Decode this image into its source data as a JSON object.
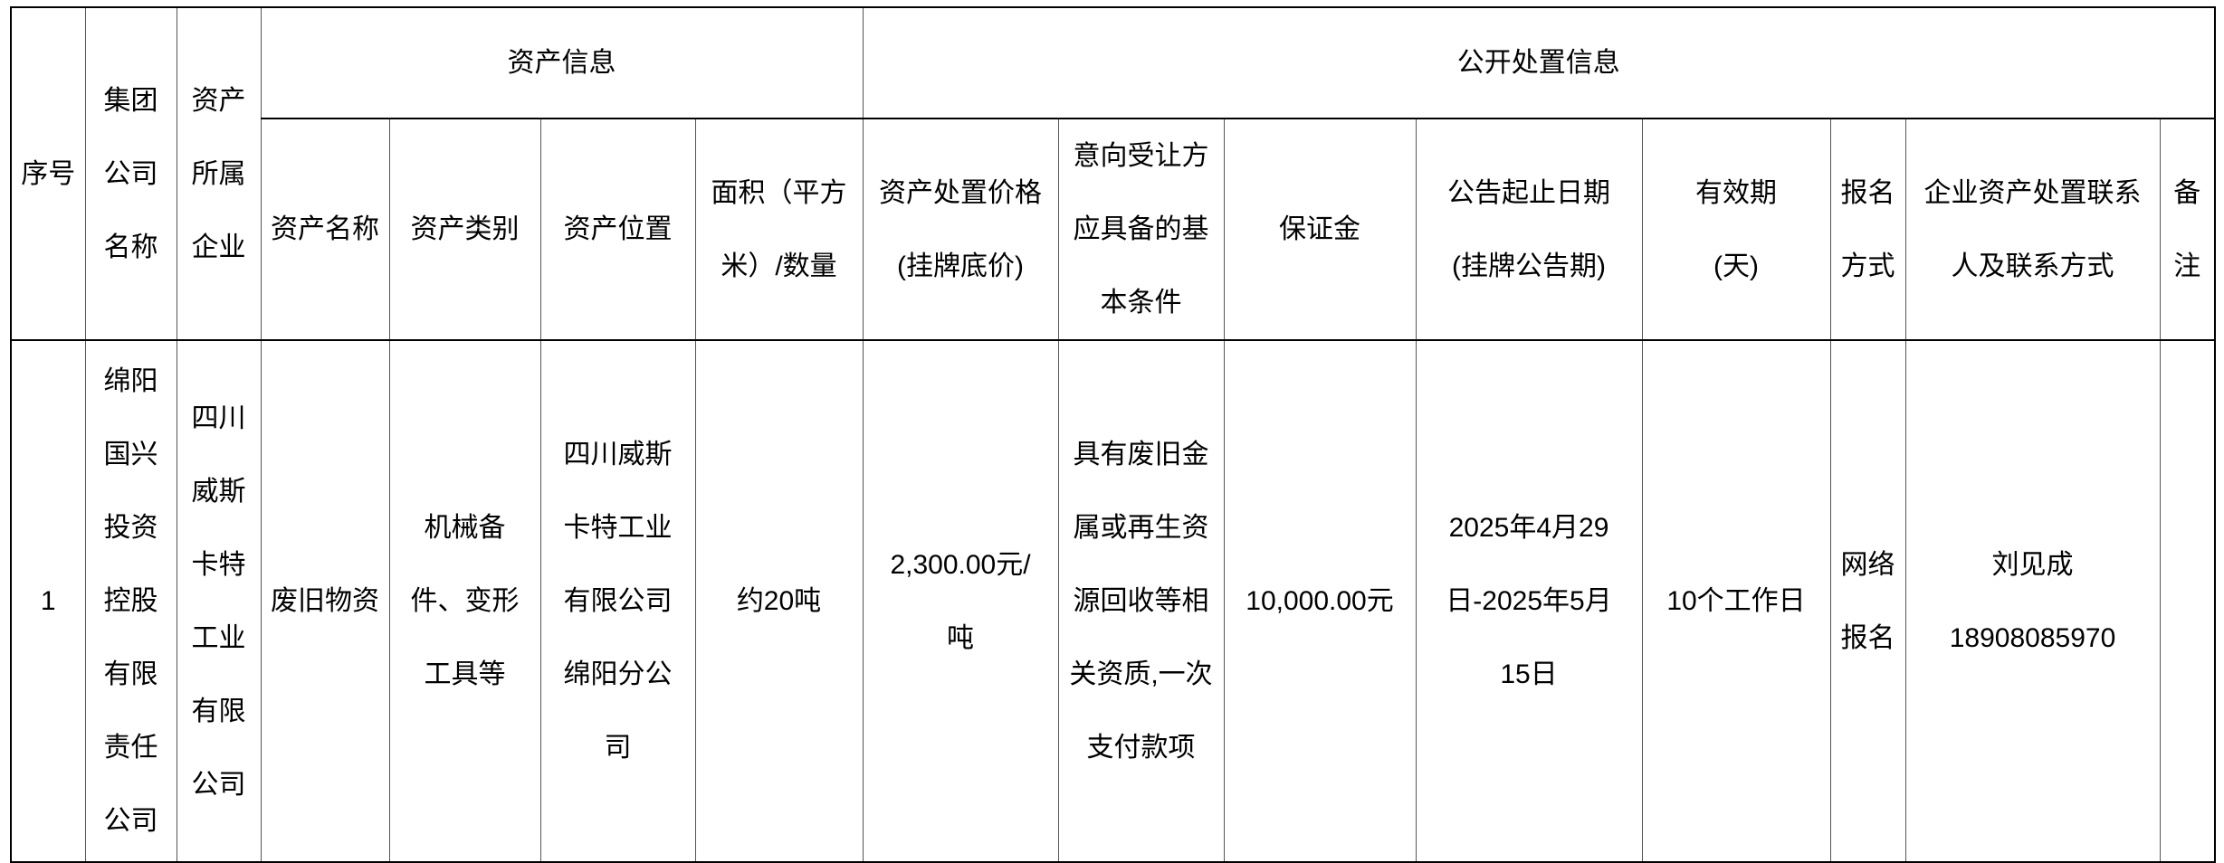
{
  "table": {
    "group_headers": {
      "asset_info": "资产信息",
      "disposal_info": "公开处置信息"
    },
    "headers": [
      [
        "序号"
      ],
      [
        "集团",
        "公司",
        "名称"
      ],
      [
        "资产",
        "所属",
        "企业"
      ],
      [
        "资产名称"
      ],
      [
        "资产类别"
      ],
      [
        "资产位置"
      ],
      [
        "面积（平方",
        "米）/数量"
      ],
      [
        "资产处置价格",
        "(挂牌底价)"
      ],
      [
        "意向受让方",
        "应具备的基",
        "本条件"
      ],
      [
        "保证金"
      ],
      [
        "公告起止日期",
        "(挂牌公告期)"
      ],
      [
        "有效期",
        "(天)"
      ],
      [
        "报名",
        "方式"
      ],
      [
        "企业资产处置联系",
        "人及联系方式"
      ],
      [
        "备",
        "注"
      ]
    ],
    "rows": [
      [
        [
          "1"
        ],
        [
          "绵阳",
          "国兴",
          "投资",
          "控股",
          "有限",
          "责任",
          "公司"
        ],
        [
          "四川",
          "威斯",
          "卡特",
          "工业",
          "有限",
          "公司"
        ],
        [
          "废旧物资"
        ],
        [
          "机械备",
          "件、变形",
          "工具等"
        ],
        [
          "四川威斯",
          "卡特工业",
          "有限公司",
          "绵阳分公",
          "司"
        ],
        [
          "约20吨"
        ],
        [
          "2,300.00元/",
          "吨"
        ],
        [
          "具有废旧金",
          "属或再生资",
          "源回收等相",
          "关资质,一次",
          "支付款项"
        ],
        [
          "10,000.00元"
        ],
        [
          "2025年4月29",
          "日-2025年5月",
          "15日"
        ],
        [
          "10个工作日"
        ],
        [
          "网络",
          "报名"
        ],
        [
          "刘见成",
          "18908085970"
        ],
        []
      ]
    ]
  }
}
